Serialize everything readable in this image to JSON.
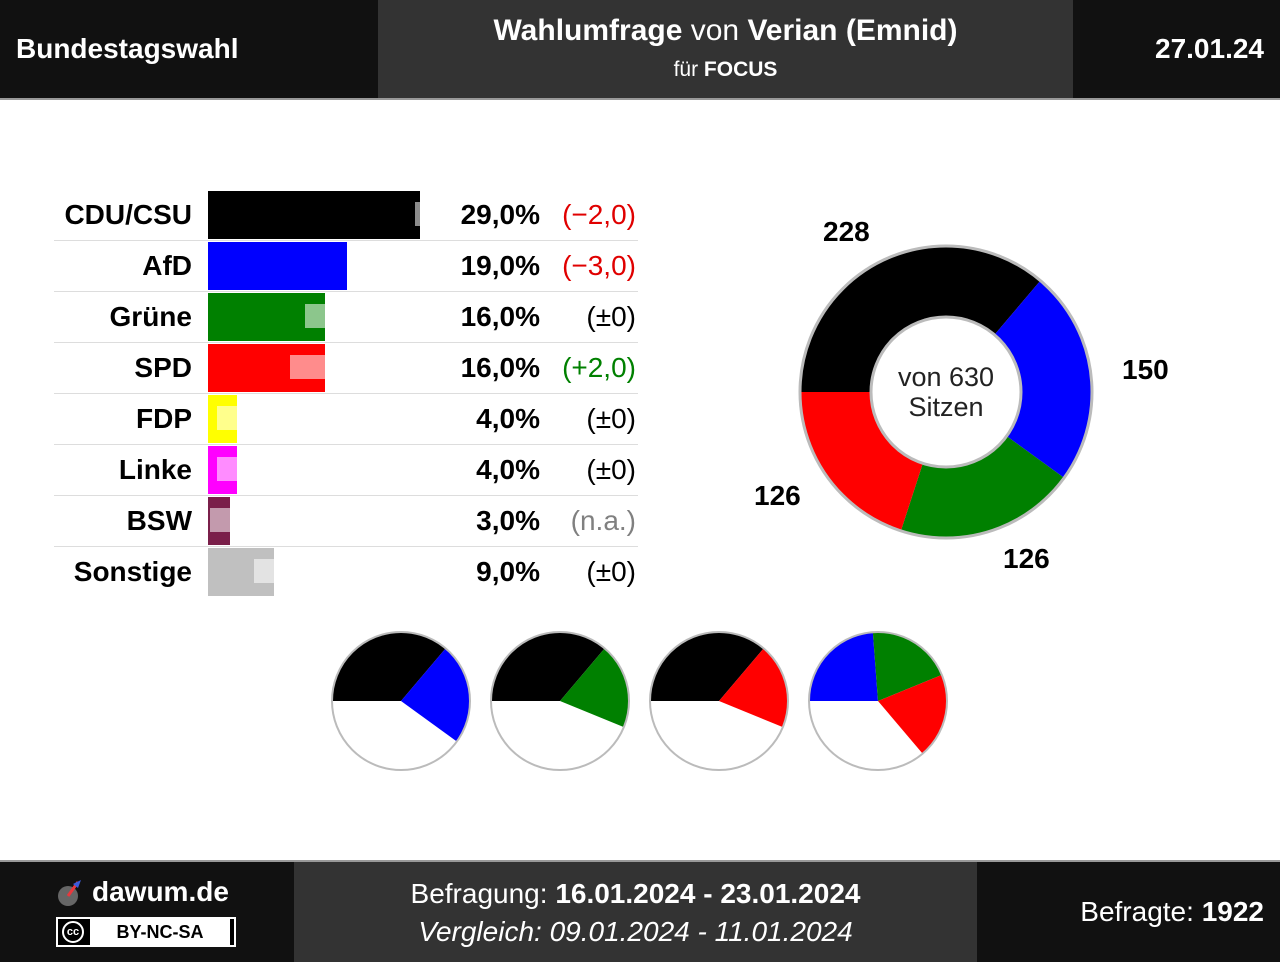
{
  "header": {
    "left": "Bundestagswahl",
    "title_a": "Wahlumfrage",
    "title_b": "von",
    "title_c": "Verian (Emnid)",
    "sub_a": "für",
    "sub_b": "FOCUS",
    "date": "27.01.24"
  },
  "chart_data": [
    {
      "type": "bar",
      "categories": [
        "CDU/CSU",
        "AfD",
        "Grüne",
        "SPD",
        "FDP",
        "Linke",
        "BSW",
        "Sonstige"
      ],
      "values": [
        29.0,
        19.0,
        16.0,
        16.0,
        4.0,
        4.0,
        3.0,
        9.0
      ],
      "previous": [
        31.0,
        22.0,
        16.0,
        14.0,
        4.0,
        4.0,
        null,
        9.0
      ],
      "value_labels": [
        "29,0%",
        "19,0%",
        "16,0%",
        "16,0%",
        "4,0%",
        "4,0%",
        "3,0%",
        "9,0%"
      ],
      "diff_labels": [
        "(−2,0)",
        "(−3,0)",
        "(±0)",
        "(+2,0)",
        "(±0)",
        "(±0)",
        "(n.a.)",
        "(±0)"
      ],
      "diff_colors": [
        "#e00000",
        "#e00000",
        "#000000",
        "#008000",
        "#000000",
        "#000000",
        "#808080",
        "#000000"
      ],
      "colors": [
        "#000000",
        "#0000ff",
        "#008000",
        "#ff0000",
        "#ffff00",
        "#ff00ff",
        "#7a1f4a",
        "#c0c0c0"
      ]
    },
    {
      "type": "pie",
      "categories": [
        "CDU/CSU",
        "AfD",
        "Grüne",
        "SPD"
      ],
      "values": [
        228,
        150,
        126,
        126
      ],
      "labels": [
        "228",
        "150",
        "126",
        "126"
      ],
      "total": 630,
      "center_label_1": "von 630",
      "center_label_2": "Sitzen",
      "colors": [
        "#000000",
        "#0000ff",
        "#008000",
        "#ff0000"
      ]
    },
    {
      "type": "pie",
      "coalitions": [
        {
          "parties": [
            "CDU/CSU",
            "AfD"
          ],
          "seats": [
            228,
            150
          ],
          "colors": [
            "#000000",
            "#0000ff"
          ]
        },
        {
          "parties": [
            "CDU/CSU",
            "Grüne"
          ],
          "seats": [
            228,
            126
          ],
          "colors": [
            "#000000",
            "#008000"
          ]
        },
        {
          "parties": [
            "CDU/CSU",
            "SPD"
          ],
          "seats": [
            228,
            126
          ],
          "colors": [
            "#000000",
            "#ff0000"
          ]
        },
        {
          "parties": [
            "AfD",
            "Grüne",
            "SPD"
          ],
          "seats": [
            150,
            126,
            126
          ],
          "colors": [
            "#0000ff",
            "#008000",
            "#ff0000"
          ]
        }
      ],
      "total": 630
    }
  ],
  "footer": {
    "site": "dawum.de",
    "license": "BY-NC-SA",
    "cc": "cc",
    "befragung_label": "Befragung:",
    "befragung_value": "16.01.2024 - 23.01.2024",
    "vergleich": "Vergleich: 09.01.2024 - 11.01.2024",
    "befragte_label": "Befragte:",
    "befragte_value": "1922"
  }
}
